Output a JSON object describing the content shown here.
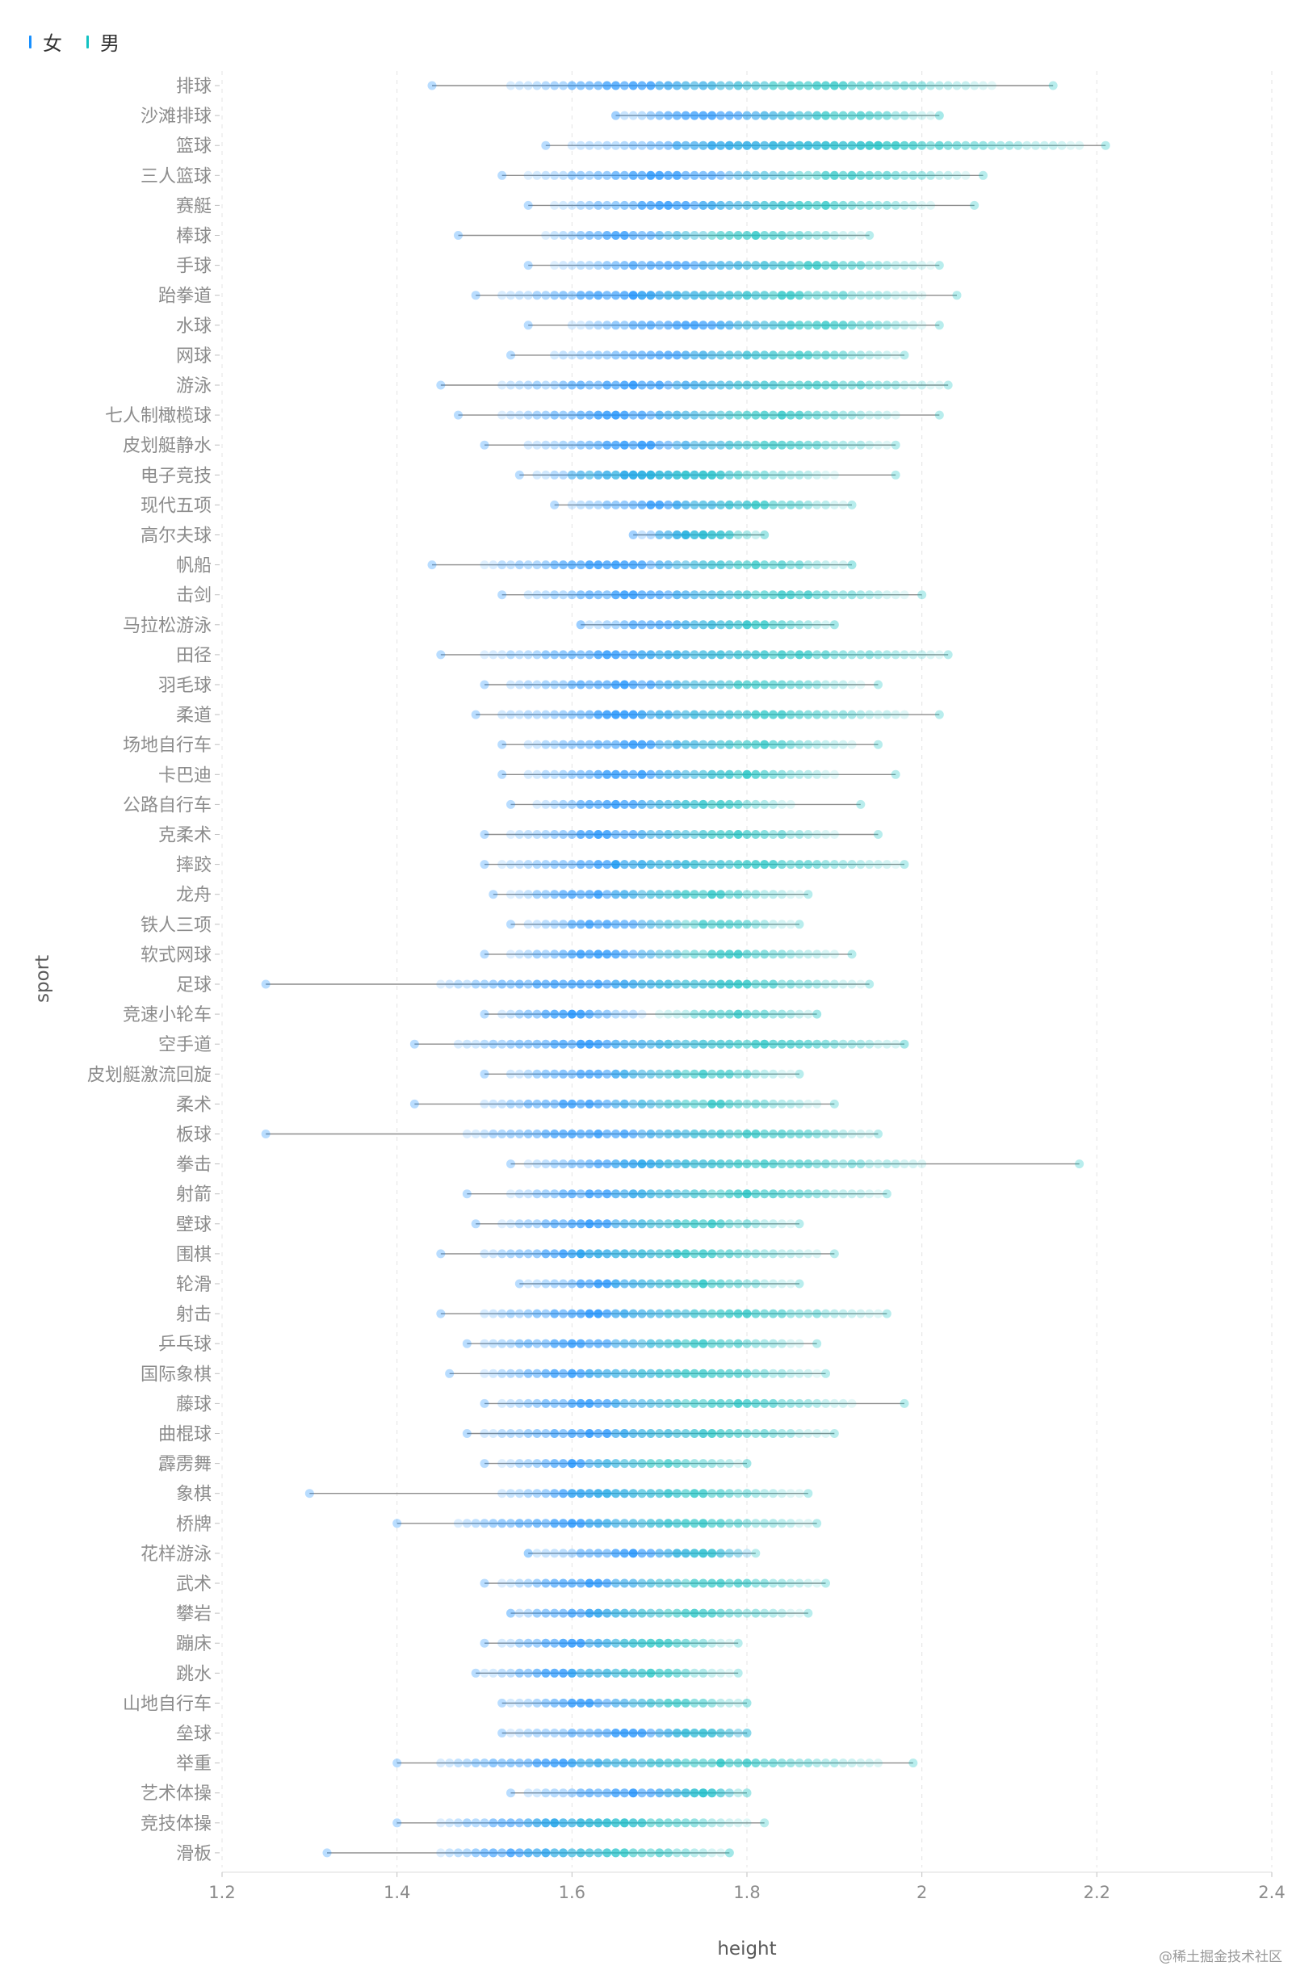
{
  "legend": [
    {
      "label": "女",
      "color": "#1890ff"
    },
    {
      "label": "男",
      "color": "#13c2c2"
    }
  ],
  "watermark": "@稀土掘金技术社区",
  "chart_data": {
    "type": "scatter",
    "subtype": "strip-dot-range",
    "xlabel": "height",
    "ylabel": "sport",
    "xlim": [
      1.2,
      2.4
    ],
    "xticks": [
      1.2,
      1.4,
      1.6,
      1.8,
      2,
      2.2,
      2.4
    ],
    "legend_position": "top-left",
    "grid": "vertical dashed",
    "series_colors": {
      "女": "#1890ff",
      "男": "#13c2c2"
    },
    "sports": [
      {
        "name": "排球",
        "min": 1.44,
        "max": 2.15,
        "f": [
          1.53,
          1.82
        ],
        "m": [
          1.7,
          2.08
        ]
      },
      {
        "name": "沙滩排球",
        "min": 1.65,
        "max": 2.02,
        "f": [
          1.65,
          1.88
        ],
        "m": [
          1.8,
          2.02
        ]
      },
      {
        "name": "篮球",
        "min": 1.57,
        "max": 2.21,
        "f": [
          1.6,
          1.95
        ],
        "m": [
          1.72,
          2.18
        ]
      },
      {
        "name": "三人篮球",
        "min": 1.52,
        "max": 2.07,
        "f": [
          1.55,
          1.85
        ],
        "m": [
          1.78,
          2.05
        ]
      },
      {
        "name": "赛艇",
        "min": 1.55,
        "max": 2.06,
        "f": [
          1.58,
          1.85
        ],
        "m": [
          1.75,
          2.01
        ]
      },
      {
        "name": "棒球",
        "min": 1.47,
        "max": 1.94,
        "f": [
          1.57,
          1.75
        ],
        "m": [
          1.7,
          1.93
        ]
      },
      {
        "name": "手球",
        "min": 1.55,
        "max": 2.02,
        "f": [
          1.58,
          1.85
        ],
        "m": [
          1.75,
          2.01
        ]
      },
      {
        "name": "跆拳道",
        "min": 1.49,
        "max": 2.04,
        "f": [
          1.52,
          1.82
        ],
        "m": [
          1.68,
          2.0
        ]
      },
      {
        "name": "水球",
        "min": 1.55,
        "max": 2.02,
        "f": [
          1.6,
          1.85
        ],
        "m": [
          1.77,
          2.0
        ]
      },
      {
        "name": "网球",
        "min": 1.53,
        "max": 1.98,
        "f": [
          1.58,
          1.83
        ],
        "m": [
          1.73,
          1.97
        ]
      },
      {
        "name": "游泳",
        "min": 1.45,
        "max": 2.03,
        "f": [
          1.52,
          1.83
        ],
        "m": [
          1.72,
          2.02
        ]
      },
      {
        "name": "七人制橄榄球",
        "min": 1.47,
        "max": 2.02,
        "f": [
          1.52,
          1.78
        ],
        "m": [
          1.7,
          1.97
        ]
      },
      {
        "name": "皮划艇静水",
        "min": 1.5,
        "max": 1.97,
        "f": [
          1.55,
          1.8
        ],
        "m": [
          1.72,
          1.96
        ]
      },
      {
        "name": "电子竞技",
        "min": 1.54,
        "max": 1.97,
        "f": [
          1.56,
          1.78
        ],
        "m": [
          1.6,
          1.9
        ]
      },
      {
        "name": "现代五项",
        "min": 1.58,
        "max": 1.92,
        "f": [
          1.6,
          1.8
        ],
        "m": [
          1.72,
          1.91
        ]
      },
      {
        "name": "高尔夫球",
        "min": 1.67,
        "max": 1.82,
        "f": [
          1.67,
          1.78
        ],
        "m": [
          1.7,
          1.82
        ]
      },
      {
        "name": "帆船",
        "min": 1.44,
        "max": 1.92,
        "f": [
          1.5,
          1.78
        ],
        "m": [
          1.7,
          1.92
        ]
      },
      {
        "name": "击剑",
        "min": 1.52,
        "max": 2.0,
        "f": [
          1.55,
          1.8
        ],
        "m": [
          1.72,
          1.98
        ]
      },
      {
        "name": "马拉松游泳",
        "min": 1.61,
        "max": 1.9,
        "f": [
          1.61,
          1.8
        ],
        "m": [
          1.72,
          1.9
        ]
      },
      {
        "name": "田径",
        "min": 1.45,
        "max": 2.03,
        "f": [
          1.5,
          1.82
        ],
        "m": [
          1.68,
          2.02
        ]
      },
      {
        "name": "羽毛球",
        "min": 1.5,
        "max": 1.95,
        "f": [
          1.53,
          1.78
        ],
        "m": [
          1.7,
          1.93
        ]
      },
      {
        "name": "柔道",
        "min": 1.49,
        "max": 2.02,
        "f": [
          1.52,
          1.8
        ],
        "m": [
          1.68,
          1.98
        ]
      },
      {
        "name": "场地自行车",
        "min": 1.52,
        "max": 1.95,
        "f": [
          1.55,
          1.78
        ],
        "m": [
          1.7,
          1.92
        ]
      },
      {
        "name": "卡巴迪",
        "min": 1.52,
        "max": 1.97,
        "f": [
          1.55,
          1.78
        ],
        "m": [
          1.7,
          1.9
        ]
      },
      {
        "name": "公路自行车",
        "min": 1.53,
        "max": 1.93,
        "f": [
          1.56,
          1.75
        ],
        "m": [
          1.68,
          1.85
        ]
      },
      {
        "name": "克柔术",
        "min": 1.5,
        "max": 1.95,
        "f": [
          1.53,
          1.75
        ],
        "m": [
          1.68,
          1.9
        ]
      },
      {
        "name": "摔跤",
        "min": 1.5,
        "max": 1.98,
        "f": [
          1.52,
          1.78
        ],
        "m": [
          1.65,
          1.97
        ]
      },
      {
        "name": "龙舟",
        "min": 1.51,
        "max": 1.87,
        "f": [
          1.53,
          1.72
        ],
        "m": [
          1.65,
          1.86
        ]
      },
      {
        "name": "铁人三项",
        "min": 1.53,
        "max": 1.86,
        "f": [
          1.55,
          1.72
        ],
        "m": [
          1.68,
          1.85
        ]
      },
      {
        "name": "软式网球",
        "min": 1.5,
        "max": 1.92,
        "f": [
          1.53,
          1.72
        ],
        "m": [
          1.68,
          1.9
        ]
      },
      {
        "name": "足球",
        "min": 1.25,
        "max": 1.94,
        "f": [
          1.45,
          1.78
        ],
        "m": [
          1.65,
          1.93
        ]
      },
      {
        "name": "竞速小轮车",
        "min": 1.5,
        "max": 1.88,
        "f": [
          1.52,
          1.68
        ],
        "m": [
          1.7,
          1.88
        ]
      },
      {
        "name": "空手道",
        "min": 1.42,
        "max": 1.98,
        "f": [
          1.47,
          1.78
        ],
        "m": [
          1.65,
          1.98
        ]
      },
      {
        "name": "皮划艇激流回旋",
        "min": 1.5,
        "max": 1.86,
        "f": [
          1.53,
          1.72
        ],
        "m": [
          1.65,
          1.85
        ]
      },
      {
        "name": "柔术",
        "min": 1.42,
        "max": 1.9,
        "f": [
          1.5,
          1.72
        ],
        "m": [
          1.65,
          1.88
        ]
      },
      {
        "name": "板球",
        "min": 1.25,
        "max": 1.95,
        "f": [
          1.48,
          1.78
        ],
        "m": [
          1.68,
          1.94
        ]
      },
      {
        "name": "拳击",
        "min": 1.53,
        "max": 2.18,
        "f": [
          1.55,
          1.78
        ],
        "m": [
          1.65,
          2.0
        ]
      },
      {
        "name": "射箭",
        "min": 1.48,
        "max": 1.96,
        "f": [
          1.53,
          1.75
        ],
        "m": [
          1.65,
          1.95
        ]
      },
      {
        "name": "壁球",
        "min": 1.49,
        "max": 1.86,
        "f": [
          1.52,
          1.72
        ],
        "m": [
          1.65,
          1.85
        ]
      },
      {
        "name": "围棋",
        "min": 1.45,
        "max": 1.9,
        "f": [
          1.5,
          1.72
        ],
        "m": [
          1.6,
          1.88
        ]
      },
      {
        "name": "轮滑",
        "min": 1.54,
        "max": 1.86,
        "f": [
          1.55,
          1.72
        ],
        "m": [
          1.65,
          1.85
        ]
      },
      {
        "name": "射击",
        "min": 1.45,
        "max": 1.96,
        "f": [
          1.5,
          1.75
        ],
        "m": [
          1.65,
          1.95
        ]
      },
      {
        "name": "乒乓球",
        "min": 1.48,
        "max": 1.88,
        "f": [
          1.5,
          1.72
        ],
        "m": [
          1.65,
          1.86
        ]
      },
      {
        "name": "国际象棋",
        "min": 1.46,
        "max": 1.89,
        "f": [
          1.5,
          1.72
        ],
        "m": [
          1.62,
          1.88
        ]
      },
      {
        "name": "藤球",
        "min": 1.5,
        "max": 1.98,
        "f": [
          1.52,
          1.72
        ],
        "m": [
          1.65,
          1.92
        ]
      },
      {
        "name": "曲棍球",
        "min": 1.48,
        "max": 1.9,
        "f": [
          1.5,
          1.75
        ],
        "m": [
          1.65,
          1.89
        ]
      },
      {
        "name": "霹雳舞",
        "min": 1.5,
        "max": 1.8,
        "f": [
          1.52,
          1.68
        ],
        "m": [
          1.62,
          1.8
        ]
      },
      {
        "name": "象棋",
        "min": 1.3,
        "max": 1.87,
        "f": [
          1.52,
          1.72
        ],
        "m": [
          1.6,
          1.86
        ]
      },
      {
        "name": "桥牌",
        "min": 1.4,
        "max": 1.88,
        "f": [
          1.47,
          1.72
        ],
        "m": [
          1.62,
          1.87
        ]
      },
      {
        "name": "花样游泳",
        "min": 1.55,
        "max": 1.81,
        "f": [
          1.55,
          1.8
        ],
        "m": [
          1.7,
          1.8
        ]
      },
      {
        "name": "武术",
        "min": 1.5,
        "max": 1.89,
        "f": [
          1.52,
          1.72
        ],
        "m": [
          1.65,
          1.88
        ]
      },
      {
        "name": "攀岩",
        "min": 1.53,
        "max": 1.87,
        "f": [
          1.53,
          1.7
        ],
        "m": [
          1.62,
          1.86
        ]
      },
      {
        "name": "蹦床",
        "min": 1.5,
        "max": 1.79,
        "f": [
          1.52,
          1.68
        ],
        "m": [
          1.62,
          1.78
        ]
      },
      {
        "name": "跳水",
        "min": 1.49,
        "max": 1.79,
        "f": [
          1.5,
          1.68
        ],
        "m": [
          1.6,
          1.78
        ]
      },
      {
        "name": "山地自行车",
        "min": 1.52,
        "max": 1.8,
        "f": [
          1.53,
          1.7
        ],
        "m": [
          1.65,
          1.8
        ]
      },
      {
        "name": "垒球",
        "min": 1.52,
        "max": 1.8,
        "f": [
          1.53,
          1.8
        ],
        "m": [
          1.7,
          1.8
        ]
      },
      {
        "name": "举重",
        "min": 1.4,
        "max": 1.99,
        "f": [
          1.45,
          1.72
        ],
        "m": [
          1.6,
          1.95
        ]
      },
      {
        "name": "艺术体操",
        "min": 1.53,
        "max": 1.8,
        "f": [
          1.55,
          1.78
        ],
        "m": [
          1.7,
          1.8
        ]
      },
      {
        "name": "竞技体操",
        "min": 1.4,
        "max": 1.82,
        "f": [
          1.45,
          1.68
        ],
        "m": [
          1.55,
          1.8
        ]
      },
      {
        "name": "滑板",
        "min": 1.32,
        "max": 1.78,
        "f": [
          1.45,
          1.65
        ],
        "m": [
          1.55,
          1.78
        ]
      }
    ]
  }
}
